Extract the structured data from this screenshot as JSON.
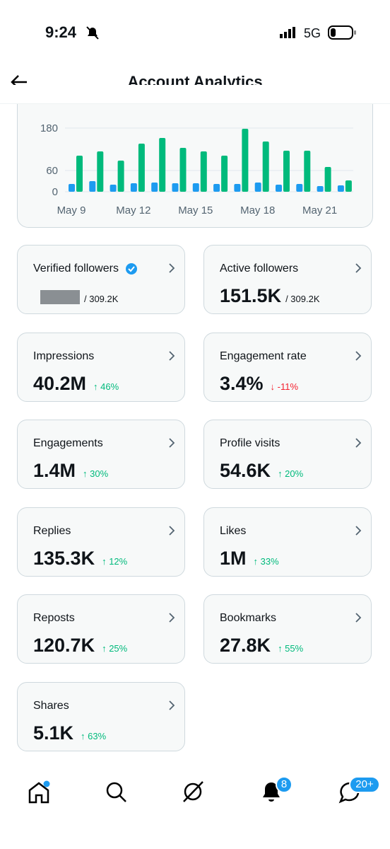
{
  "status_bar": {
    "time": "9:24",
    "network": "5G"
  },
  "header": {
    "title": "Account Analytics"
  },
  "chart_data": {
    "type": "bar",
    "categories": [
      "May 9",
      null,
      null,
      "May 12",
      null,
      null,
      "May 15",
      null,
      null,
      "May 18",
      null,
      null,
      "May 21",
      null
    ],
    "series": [
      {
        "color": "#1d9bf0",
        "values": [
          22,
          30,
          20,
          24,
          26,
          24,
          24,
          22,
          22,
          26,
          20,
          22,
          16,
          18
        ]
      },
      {
        "color": "#00ba7c",
        "values": [
          102,
          114,
          88,
          136,
          152,
          124,
          114,
          102,
          178,
          142,
          116,
          116,
          70,
          32
        ]
      }
    ],
    "ylim": [
      0,
      180
    ],
    "yticks": [
      0,
      60,
      180
    ],
    "grid": true
  },
  "cards": [
    {
      "label": "Verified followers",
      "denominator": "/ 309.2K"
    },
    {
      "label": "Active followers",
      "value": "151.5K",
      "denominator": "/ 309.2K"
    },
    {
      "label": "Impressions",
      "value": "40.2M",
      "change": "↑ 46%",
      "trend": "up"
    },
    {
      "label": "Engagement rate",
      "value": "3.4%",
      "change": "↓ -11%",
      "trend": "down"
    },
    {
      "label": "Engagements",
      "value": "1.4M",
      "change": "↑ 30%",
      "trend": "up"
    },
    {
      "label": "Profile visits",
      "value": "54.6K",
      "change": "↑ 20%",
      "trend": "up"
    },
    {
      "label": "Replies",
      "value": "135.3K",
      "change": "↑ 12%",
      "trend": "up"
    },
    {
      "label": "Likes",
      "value": "1M",
      "change": "↑ 33%",
      "trend": "up"
    },
    {
      "label": "Reposts",
      "value": "120.7K",
      "change": "↑ 25%",
      "trend": "up"
    },
    {
      "label": "Bookmarks",
      "value": "27.8K",
      "change": "↑ 55%",
      "trend": "up"
    },
    {
      "label": "Shares",
      "value": "5.1K",
      "change": "↑ 63%",
      "trend": "up"
    }
  ],
  "nav": {
    "notifications_badge": "8",
    "messages_badge": "20+"
  }
}
